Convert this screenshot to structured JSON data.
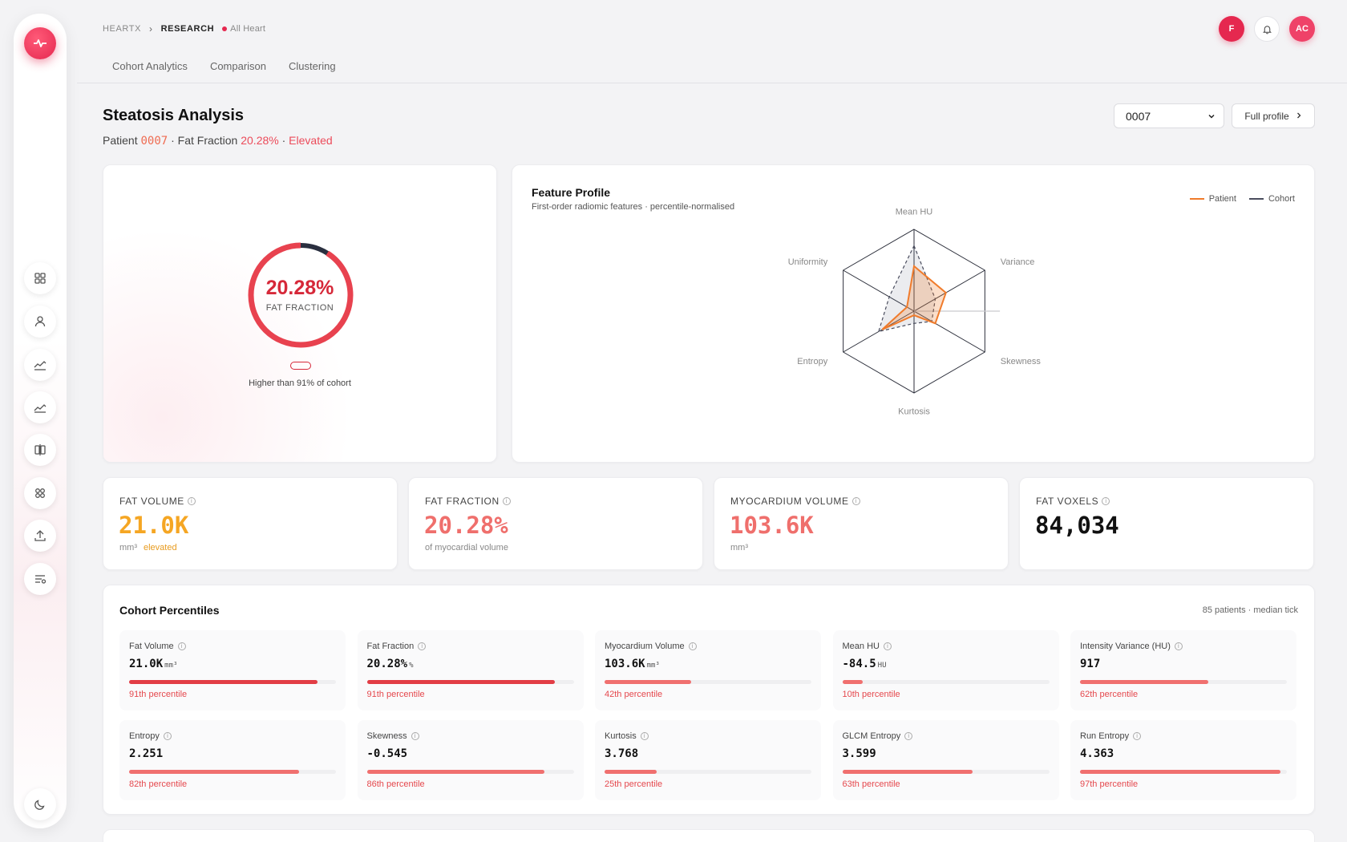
{
  "breadcrumb": {
    "root": "HEARTX",
    "current": "RESEARCH",
    "tag": "All Heart"
  },
  "tabs": [
    "Cohort Analytics",
    "Comparison",
    "Clustering"
  ],
  "header_right": {
    "user_initial": "F",
    "avatar_initials": "AC"
  },
  "page": {
    "title": "Steatosis Analysis",
    "subtitle_prefix": "Patient ",
    "patient_id": "0007",
    "subtitle_mid": " · Fat Fraction ",
    "fat_fraction": "20.28%",
    "subtitle_sep": " · ",
    "status": "Elevated"
  },
  "patient_select": {
    "value": "0007"
  },
  "full_profile_label": "Full profile",
  "gauge": {
    "value_text": "20.28%",
    "label": "FAT FRACTION",
    "note": "Higher than 91% of cohort",
    "fill_fraction": 0.91,
    "color": "#e8424f"
  },
  "radar": {
    "title": "Feature Profile",
    "subtitle": "First-order radiomic features · percentile-normalised",
    "legend": [
      {
        "name": "Patient",
        "color": "#f07b2b"
      },
      {
        "name": "Cohort",
        "color": "#4a4d5e"
      }
    ],
    "axes": [
      "Mean HU",
      "Variance",
      "Skewness",
      "Kurtosis",
      "Entropy",
      "Uniformity"
    ],
    "patient": [
      0.55,
      0.45,
      0.3,
      0.05,
      0.45,
      0.1
    ],
    "cohort": [
      0.8,
      0.3,
      0.25,
      0.15,
      0.5,
      0.35
    ]
  },
  "stats": [
    {
      "label": "FAT VOLUME",
      "value": "21.0K",
      "unit": "mm³",
      "note": "elevated",
      "color": "#f5a623"
    },
    {
      "label": "FAT FRACTION",
      "value": "20.28%",
      "unit": "of myocardial volume",
      "note": "",
      "color": "#ef6f6c"
    },
    {
      "label": "MYOCARDIUM VOLUME",
      "value": "103.6K",
      "unit": "mm³",
      "note": "",
      "color": "#ef6f6c"
    },
    {
      "label": "FAT VOXELS",
      "value": "84,034",
      "unit": "",
      "note": "",
      "color": "#111111"
    }
  ],
  "percentiles": {
    "title": "Cohort Percentiles",
    "meta": "85 patients · median tick",
    "items": [
      {
        "name": "Fat Volume",
        "value": "21.0K",
        "unit": "mm³",
        "percentile": 91,
        "label": "91th percentile",
        "color": "#e23d45"
      },
      {
        "name": "Fat Fraction",
        "value": "20.28%",
        "unit": "%",
        "percentile": 91,
        "label": "91th percentile",
        "color": "#e23d45"
      },
      {
        "name": "Myocardium Volume",
        "value": "103.6K",
        "unit": "mm³",
        "percentile": 42,
        "label": "42th percentile",
        "color": "#f0706f"
      },
      {
        "name": "Mean HU",
        "value": "-84.5",
        "unit": "HU",
        "percentile": 10,
        "label": "10th percentile",
        "color": "#f0706f"
      },
      {
        "name": "Intensity Variance (HU)",
        "value": "917",
        "unit": "",
        "percentile": 62,
        "label": "62th percentile",
        "color": "#f0706f"
      },
      {
        "name": "Entropy",
        "value": "2.251",
        "unit": "",
        "percentile": 82,
        "label": "82th percentile",
        "color": "#f0706f"
      },
      {
        "name": "Skewness",
        "value": "-0.545",
        "unit": "",
        "percentile": 86,
        "label": "86th percentile",
        "color": "#f0706f"
      },
      {
        "name": "Kurtosis",
        "value": "3.768",
        "unit": "",
        "percentile": 25,
        "label": "25th percentile",
        "color": "#f0706f"
      },
      {
        "name": "GLCM Entropy",
        "value": "3.599",
        "unit": "",
        "percentile": 63,
        "label": "63th percentile",
        "color": "#f0706f"
      },
      {
        "name": "Run Entropy",
        "value": "4.363",
        "unit": "",
        "percentile": 97,
        "label": "97th percentile",
        "color": "#f0706f"
      }
    ]
  }
}
